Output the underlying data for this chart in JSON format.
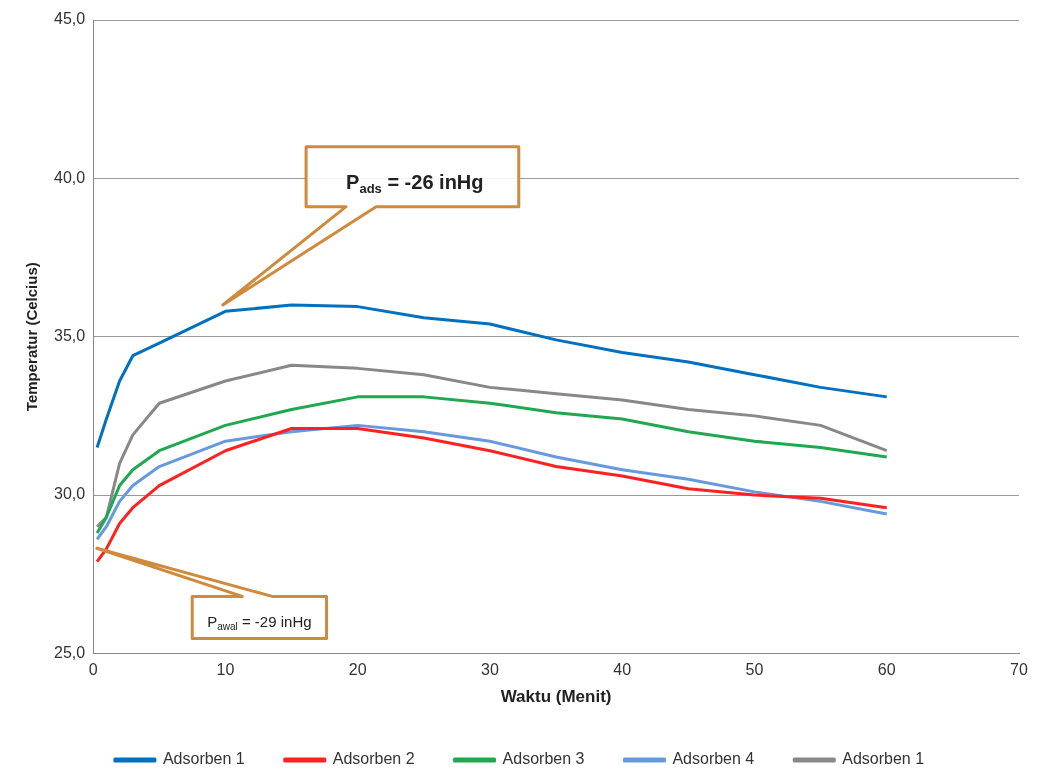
{
  "chart_data": {
    "type": "line",
    "xlabel": "Waktu (Menit)",
    "ylabel": "Temperatur (Celcius)",
    "x": [
      0.3,
      1,
      2,
      3,
      5,
      10,
      15,
      20,
      25,
      30,
      35,
      40,
      45,
      50,
      55,
      60
    ],
    "series": [
      {
        "name": "Adsorben 1",
        "color": "#0070c0",
        "values": [
          31.5,
          32.4,
          33.6,
          34.4,
          34.8,
          35.8,
          36.0,
          35.95,
          35.6,
          35.4,
          34.9,
          34.5,
          34.2,
          33.8,
          33.4,
          33.1
        ]
      },
      {
        "name": "Adsorben 2",
        "color": "#ff2020",
        "values": [
          27.9,
          28.3,
          29.1,
          29.6,
          30.3,
          31.4,
          32.1,
          32.1,
          31.8,
          31.4,
          30.9,
          30.6,
          30.2,
          30.0,
          29.9,
          29.6
        ]
      },
      {
        "name": "Adsorben 3",
        "color": "#1fa84f",
        "values": [
          28.8,
          29.3,
          30.3,
          30.8,
          31.4,
          32.2,
          32.7,
          33.1,
          33.1,
          32.9,
          32.6,
          32.4,
          32.0,
          31.7,
          31.5,
          31.2
        ]
      },
      {
        "name": "Adsorben 4",
        "color": "#6699dd",
        "values": [
          28.6,
          29.0,
          29.8,
          30.3,
          30.9,
          31.7,
          32.0,
          32.2,
          32.0,
          31.7,
          31.2,
          30.8,
          30.5,
          30.1,
          29.8,
          29.4
        ]
      },
      {
        "name": "Adsorben 1",
        "color": "#888888",
        "values": [
          29.0,
          29.3,
          31.0,
          31.9,
          32.9,
          33.6,
          34.1,
          34.0,
          33.8,
          33.4,
          33.2,
          33.0,
          32.7,
          32.5,
          32.2,
          31.4
        ]
      }
    ],
    "xlim": [
      0,
      70
    ],
    "xticks": [
      0,
      10,
      20,
      30,
      40,
      50,
      60,
      70
    ],
    "ylim": [
      25,
      45
    ],
    "yticks": [
      {
        "value": 25,
        "label": "25,0"
      },
      {
        "value": 30,
        "label": "30,0"
      },
      {
        "value": 35,
        "label": "35,0"
      },
      {
        "value": 40,
        "label": "40,0"
      },
      {
        "value": 45,
        "label": "45,0"
      }
    ],
    "annotations": [
      "P$_{ads}$ = -26 inHg",
      "P$_{awal}$ = -29 inHg"
    ],
    "grid": "y",
    "legend": "bottom",
    "marker": "none",
    "line_style": "solid"
  }
}
